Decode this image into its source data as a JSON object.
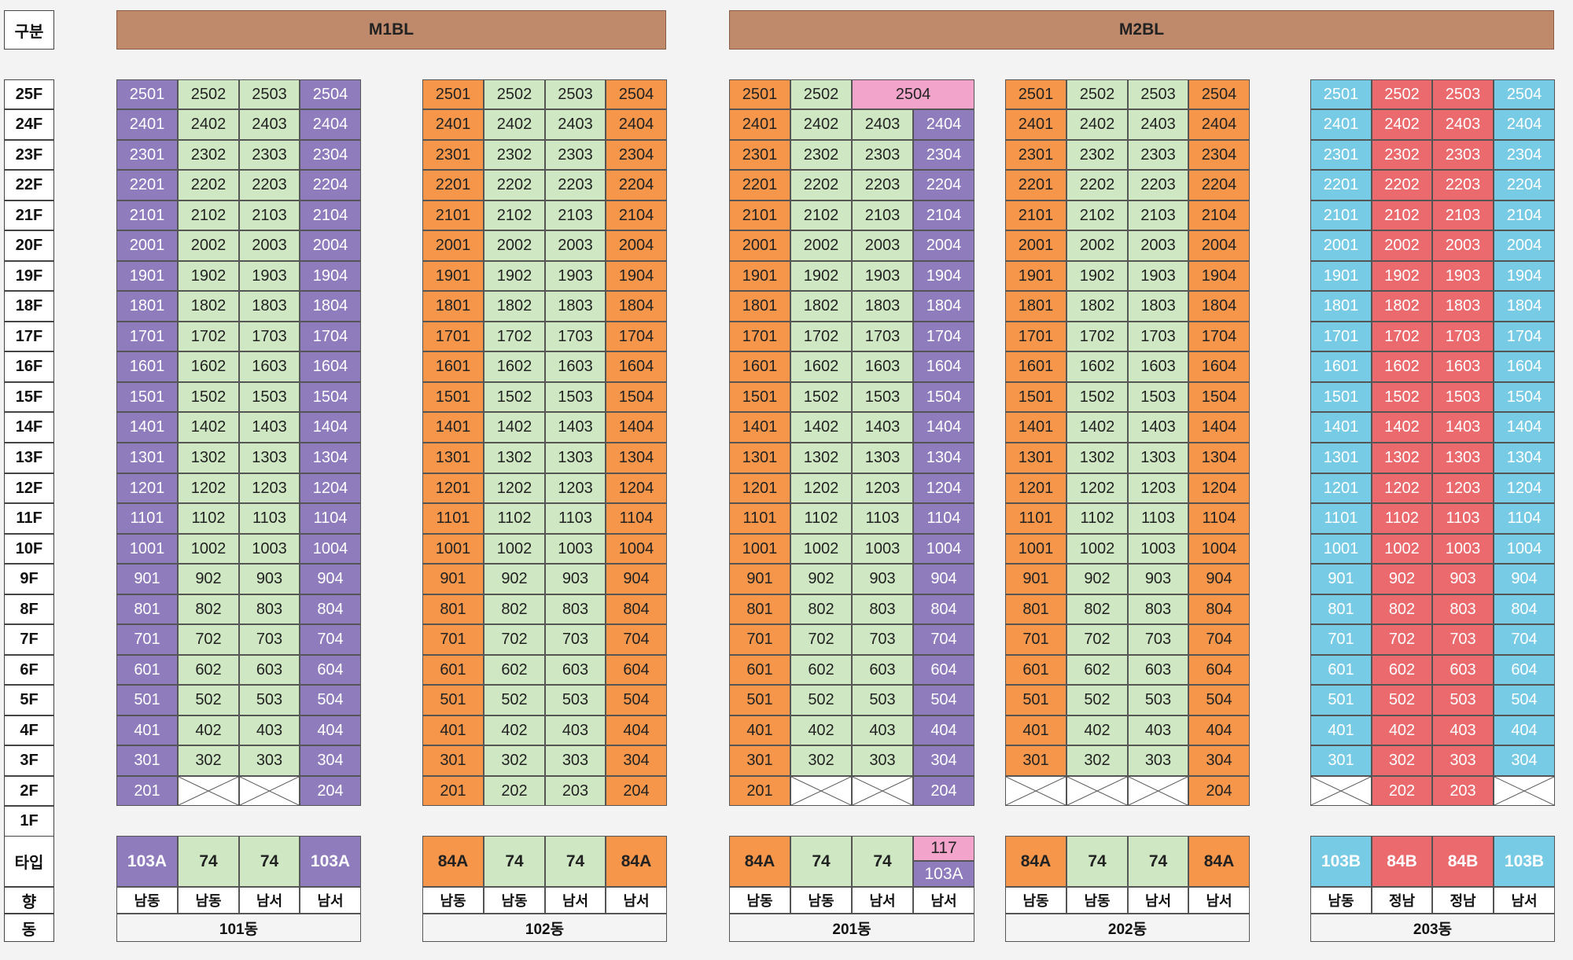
{
  "labels": {
    "category": "구분",
    "floors": [
      "25F",
      "24F",
      "23F",
      "22F",
      "21F",
      "20F",
      "19F",
      "18F",
      "17F",
      "16F",
      "15F",
      "14F",
      "13F",
      "12F",
      "11F",
      "10F",
      "9F",
      "8F",
      "7F",
      "6F",
      "5F",
      "4F",
      "3F",
      "2F",
      "1F"
    ],
    "type": "타입",
    "direction": "향",
    "building": "동"
  },
  "blocks": [
    {
      "name": "M1BL",
      "buildings": [
        0,
        1
      ]
    },
    {
      "name": "M2BL",
      "buildings": [
        2,
        3,
        4
      ]
    }
  ],
  "colors": {
    "purple": "#8e7cbc",
    "green": "#cfe8c3",
    "orange": "#f5964a",
    "pink": "#f2a4cb",
    "blue": "#78cbe5",
    "red": "#ea6a6e",
    "empty": "#ffffff",
    "header": "#bf8a6c"
  },
  "buildings": [
    {
      "name": "101동",
      "lineColors": [
        "purple",
        "green",
        "green",
        "purple"
      ],
      "special": {
        "2": [
          "201",
          "x",
          "x",
          "204"
        ]
      },
      "types": [
        {
          "text": "103A",
          "color": "purple"
        },
        {
          "text": "74",
          "color": "green"
        },
        {
          "text": "74",
          "color": "green"
        },
        {
          "text": "103A",
          "color": "purple"
        }
      ],
      "directions": [
        "남동",
        "남동",
        "남서",
        "남서"
      ]
    },
    {
      "name": "102동",
      "lineColors": [
        "orange",
        "green",
        "green",
        "orange"
      ],
      "special": {},
      "types": [
        {
          "text": "84A",
          "color": "orange"
        },
        {
          "text": "74",
          "color": "green"
        },
        {
          "text": "74",
          "color": "green"
        },
        {
          "text": "84A",
          "color": "orange"
        }
      ],
      "directions": [
        "남동",
        "남동",
        "남서",
        "남서"
      ]
    },
    {
      "name": "201동",
      "lineColors": [
        "orange",
        "green",
        "green",
        "purple"
      ],
      "special": {
        "2": [
          "201",
          "x",
          "x",
          "204"
        ]
      },
      "top": [
        "2501",
        "2502",
        "2504"
      ],
      "types": [
        {
          "text": "84A",
          "color": "orange"
        },
        {
          "text": "74",
          "color": "green"
        },
        {
          "text": "74",
          "color": "green"
        },
        {
          "top": "117",
          "topColor": "pink",
          "bottom": "103A",
          "bottomColor": "purple"
        }
      ],
      "directions": [
        "남동",
        "남동",
        "남서",
        "남서"
      ]
    },
    {
      "name": "202동",
      "lineColors": [
        "orange",
        "green",
        "green",
        "orange"
      ],
      "special": {
        "2": [
          "x",
          "x",
          "x",
          "204"
        ]
      },
      "types": [
        {
          "text": "84A",
          "color": "orange"
        },
        {
          "text": "74",
          "color": "green"
        },
        {
          "text": "74",
          "color": "green"
        },
        {
          "text": "84A",
          "color": "orange"
        }
      ],
      "directions": [
        "남동",
        "남동",
        "남서",
        "남서"
      ]
    },
    {
      "name": "203동",
      "lineColors": [
        "blue",
        "red",
        "red",
        "blue"
      ],
      "special": {
        "2": [
          "x",
          "202",
          "203",
          "x"
        ]
      },
      "types": [
        {
          "text": "103B",
          "color": "blue"
        },
        {
          "text": "84B",
          "color": "red"
        },
        {
          "text": "84B",
          "color": "red"
        },
        {
          "text": "103B",
          "color": "blue"
        }
      ],
      "directions": [
        "남동",
        "정남",
        "정남",
        "남서"
      ]
    }
  ]
}
